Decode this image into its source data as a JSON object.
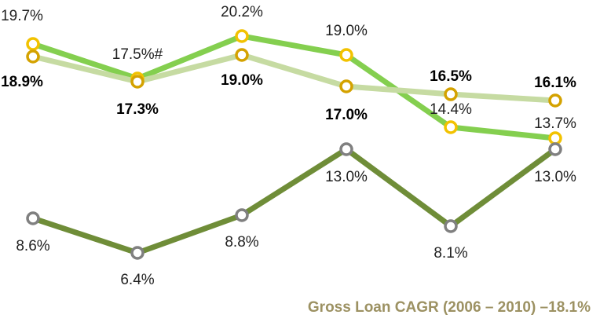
{
  "chart_data": {
    "type": "line",
    "footer": "Gross Loan CAGR (2006 – 2010) –18.1%",
    "categories": [
      null,
      null,
      null,
      null,
      null,
      null
    ],
    "ylim": [
      5,
      22
    ],
    "series": [
      {
        "color": "#84cf4f",
        "marker_color": "#f2c200",
        "values": [
          19.7,
          17.5,
          20.2,
          19.0,
          14.4,
          13.7
        ],
        "value_labels": [
          "19.7%",
          "17.5%#",
          "20.2%",
          "19.0%",
          "14.4%",
          "13.7%"
        ]
      },
      {
        "color": "#c6dba2",
        "marker_color": "#d4a200",
        "values": [
          18.9,
          17.3,
          19.0,
          17.0,
          16.5,
          16.1
        ],
        "value_labels": [
          "18.9%",
          "17.3%",
          "19.0%",
          "17.0%",
          "16.5%",
          "16.1%"
        ]
      },
      {
        "color": "#6f8d38",
        "marker_color": "#808080",
        "values": [
          8.6,
          6.4,
          8.8,
          13.0,
          8.1,
          13.0
        ],
        "value_labels": [
          "8.6%",
          "6.4%",
          "8.8%",
          "13.0%",
          "8.1%",
          "13.0%"
        ]
      }
    ]
  }
}
